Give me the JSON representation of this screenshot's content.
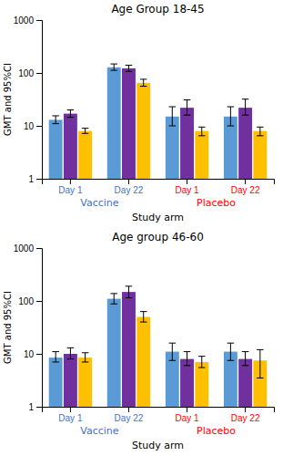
{
  "chart_data": [
    {
      "type": "bar",
      "title": "Age Group 18-45",
      "ylabel": "GMT and 95%CI",
      "xlabel": "Study arm",
      "categories": [
        "Day 1",
        "Day 22",
        "Day 1",
        "Day 22"
      ],
      "category_colors": [
        "#4472C4",
        "#4472C4",
        "#FF0000",
        "#FF0000"
      ],
      "arms": [
        {
          "label": "Vaccine",
          "color": "#4472C4",
          "size": 2
        },
        {
          "label": "Placebo",
          "color": "#FF0000",
          "size": 2
        }
      ],
      "series": [
        {
          "color": "#5B9BD5",
          "values": [
            13.0,
            128.0,
            15.0,
            15.0
          ],
          "lo": [
            11.0,
            112.0,
            10.0,
            10.0
          ],
          "hi": [
            15.5,
            148.0,
            23.0,
            23.0
          ]
        },
        {
          "color": "#7030A0",
          "values": [
            17.0,
            122.0,
            22.0,
            22.0
          ],
          "lo": [
            14.5,
            107.0,
            16.0,
            16.0
          ],
          "hi": [
            20.0,
            140.0,
            31.0,
            32.0
          ]
        },
        {
          "color": "#FFC000",
          "values": [
            8.0,
            65.0,
            8.0,
            8.0
          ],
          "lo": [
            7.2,
            56.0,
            6.5,
            6.5
          ],
          "hi": [
            9.0,
            76.0,
            9.5,
            9.5
          ]
        }
      ],
      "log": "y",
      "ylim": [
        1,
        1000
      ],
      "yticks": [
        1,
        10,
        100,
        1000
      ],
      "grid": false
    },
    {
      "type": "bar",
      "title": "Age group 46-60",
      "ylabel": "GMT and 95%CI",
      "xlabel": "Study arm",
      "categories": [
        "Day 1",
        "Day 22",
        "Day 1",
        "Day 22"
      ],
      "category_colors": [
        "#4472C4",
        "#4472C4",
        "#FF0000",
        "#FF0000"
      ],
      "arms": [
        {
          "label": "Vaccine",
          "color": "#4472C4",
          "size": 2
        },
        {
          "label": "Placebo",
          "color": "#FF0000",
          "size": 2
        }
      ],
      "series": [
        {
          "color": "#5B9BD5",
          "values": [
            8.5,
            110.0,
            11.0,
            11.0
          ],
          "lo": [
            7.0,
            88.0,
            7.5,
            7.5
          ],
          "hi": [
            11.0,
            138.0,
            16.0,
            16.0
          ]
        },
        {
          "color": "#7030A0",
          "values": [
            10.0,
            148.0,
            8.0,
            8.0
          ],
          "lo": [
            8.0,
            115.0,
            6.0,
            6.0
          ],
          "hi": [
            13.0,
            190.0,
            11.0,
            11.0
          ]
        },
        {
          "color": "#FFC000",
          "values": [
            8.5,
            50.0,
            7.0,
            7.5
          ],
          "lo": [
            7.0,
            40.0,
            5.5,
            3.5
          ],
          "hi": [
            10.5,
            63.0,
            9.0,
            12.0
          ]
        }
      ],
      "log": "y",
      "ylim": [
        1,
        1000
      ],
      "yticks": [
        1,
        10,
        100,
        1000
      ],
      "grid": false
    }
  ]
}
